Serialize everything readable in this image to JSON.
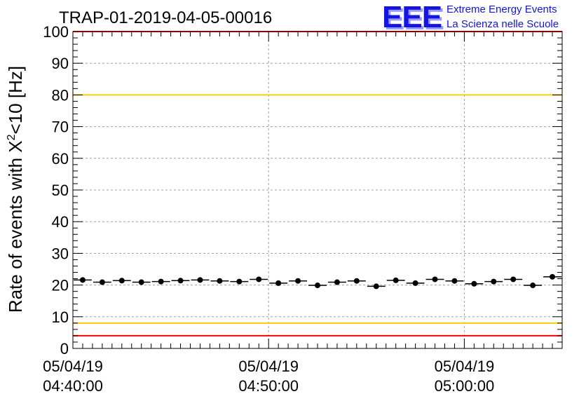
{
  "title": "TRAP-01-2019-04-05-00016",
  "logo": {
    "mark": "EEE",
    "line1": "Extreme Energy Events",
    "line2": "La Scienza nelle Scuole",
    "color": "#1515e0"
  },
  "chart_data": {
    "type": "scatter",
    "title": "TRAP-01-2019-04-05-00016",
    "ylabel": "Rate of events with X",
    "ylabel_sup": "2",
    "ylabel_tail": "<10 [Hz]",
    "ylim": [
      0,
      100
    ],
    "yticks": [
      "0",
      "10",
      "20",
      "30",
      "40",
      "50",
      "60",
      "70",
      "80",
      "90",
      "100"
    ],
    "xlim_minutes": [
      0,
      25
    ],
    "xticks": [
      {
        "t": 0,
        "date": "05/04/19",
        "time": "04:40:00"
      },
      {
        "t": 10,
        "date": "05/04/19",
        "time": "04:50:00"
      },
      {
        "t": 20,
        "date": "05/04/19",
        "time": "05:00:00"
      }
    ],
    "grid": true,
    "thresholds": [
      {
        "value": 100,
        "color": "#ff0000"
      },
      {
        "value": 80,
        "color": "#ffcc00"
      },
      {
        "value": 8,
        "color": "#ffcc00"
      },
      {
        "value": 4,
        "color": "#ff0000"
      }
    ],
    "points": [
      {
        "t": 0.5,
        "y": 21.6
      },
      {
        "t": 1.5,
        "y": 20.9
      },
      {
        "t": 2.5,
        "y": 21.4
      },
      {
        "t": 3.5,
        "y": 20.9
      },
      {
        "t": 4.5,
        "y": 21.1
      },
      {
        "t": 5.5,
        "y": 21.4
      },
      {
        "t": 6.5,
        "y": 21.6
      },
      {
        "t": 7.5,
        "y": 21.3
      },
      {
        "t": 8.5,
        "y": 21.1
      },
      {
        "t": 9.5,
        "y": 21.8
      },
      {
        "t": 10.5,
        "y": 20.6
      },
      {
        "t": 11.5,
        "y": 21.3
      },
      {
        "t": 12.5,
        "y": 19.9
      },
      {
        "t": 13.5,
        "y": 20.9
      },
      {
        "t": 14.5,
        "y": 21.3
      },
      {
        "t": 15.5,
        "y": 19.6
      },
      {
        "t": 16.5,
        "y": 21.5
      },
      {
        "t": 17.5,
        "y": 20.6
      },
      {
        "t": 18.5,
        "y": 21.8
      },
      {
        "t": 19.5,
        "y": 21.3
      },
      {
        "t": 20.5,
        "y": 20.4
      },
      {
        "t": 21.5,
        "y": 21.1
      },
      {
        "t": 22.5,
        "y": 21.8
      },
      {
        "t": 23.5,
        "y": 19.9
      },
      {
        "t": 24.5,
        "y": 22.6
      }
    ]
  }
}
